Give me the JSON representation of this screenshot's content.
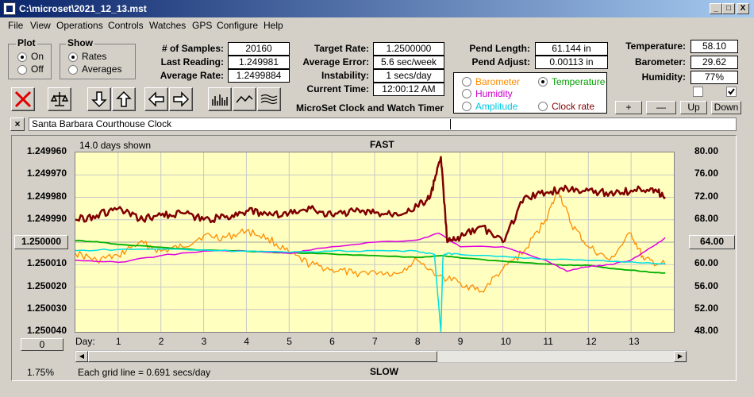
{
  "window": {
    "title": "C:\\microset\\2021_12_13.mst",
    "min": "_",
    "max": "□",
    "close": "X"
  },
  "menu": [
    "File",
    "View",
    "Operations",
    "Controls",
    "Watches",
    "GPS",
    "Configure",
    "Help"
  ],
  "plot_group": {
    "title": "Plot",
    "on": "On",
    "off": "Off",
    "selected": "On"
  },
  "show_group": {
    "title": "Show",
    "rates": "Rates",
    "averages": "Averages",
    "selected": "Rates"
  },
  "stats": {
    "samples_label": "# of Samples:",
    "samples": "20160",
    "last_reading_label": "Last Reading:",
    "last_reading": "1.249981",
    "average_rate_label": "Average Rate:",
    "average_rate": "1.2499884",
    "target_rate_label": "Target Rate:",
    "target_rate": "1.2500000",
    "average_error_label": "Average Error:",
    "average_error": "5.6 sec/week",
    "instability_label": "Instability:",
    "instability": "1 secs/day",
    "current_time_label": "Current Time:",
    "current_time": "12:00:12 AM",
    "pend_length_label": "Pend Length:",
    "pend_length": "61.144 in",
    "pend_adjust_label": "Pend Adjust:",
    "pend_adjust": "0.00113 in",
    "temperature_label": "Temperature:",
    "temperature": "58.10",
    "barometer_label": "Barometer:",
    "barometer": "29.62",
    "humidity_label": "Humidity:",
    "humidity": "77%"
  },
  "app_name": "MicroSet Clock and Watch Timer",
  "legend": {
    "barometer": "Barometer",
    "temperature": "Temperature",
    "humidity": "Humidity",
    "amplitude": "Amplitude",
    "clock_rate": "Clock rate",
    "selected": "Temperature"
  },
  "colors": {
    "clock_rate": "#800000",
    "barometer": "#ff8c00",
    "temperature": "#00b000",
    "humidity": "#e000e0",
    "amplitude": "#00e0e0",
    "plot_bg": "#ffffc0"
  },
  "adjust_buttons": {
    "plus": "+",
    "minus": "—",
    "up": "Up",
    "down": "Down"
  },
  "checkboxes": {
    "left": false,
    "right": true
  },
  "clock_name": "Santa Barbara Courthouse Clock",
  "chart": {
    "days_shown": "14.0 days shown",
    "top_label": "FAST",
    "bottom_label": "SLOW",
    "center_button": "1.250000",
    "right_button": "64.00",
    "zero_button": "0",
    "percent": "1.75%",
    "grid_note": "Each grid line = 0.691 secs/day",
    "day_label": "Day:"
  },
  "chart_data": {
    "type": "line",
    "x_label": "Day:",
    "x_ticks": [
      1,
      2,
      3,
      4,
      5,
      6,
      7,
      8,
      9,
      10,
      11,
      12,
      13
    ],
    "xlim": [
      0,
      14
    ],
    "y_left_ticks": [
      "1.249960",
      "1.249970",
      "1.249980",
      "1.249990",
      "1.250000",
      "1.250010",
      "1.250020",
      "1.250030",
      "1.250040"
    ],
    "y_left_range": [
      1.24996,
      1.25004
    ],
    "y_left_inverted": true,
    "y_right_ticks": [
      "80.00",
      "76.00",
      "72.00",
      "68.00",
      "64.00",
      "60.00",
      "56.00",
      "52.00",
      "48.00"
    ],
    "y_right_range": [
      48,
      80
    ],
    "grid": true,
    "series": [
      {
        "name": "Clock rate",
        "axis": "left",
        "x": [
          0,
          0.5,
          1,
          1.5,
          2,
          2.5,
          3,
          3.5,
          4,
          4.5,
          5,
          5.5,
          6,
          6.5,
          7,
          7.5,
          8,
          8.3,
          8.55,
          8.7,
          9,
          9.5,
          10,
          10.5,
          11,
          11.5,
          12,
          12.5,
          13,
          13.5,
          13.8
        ],
        "y": [
          1.24999,
          1.249988,
          1.249985,
          1.24999,
          1.249988,
          1.249987,
          1.24999,
          1.249989,
          1.249986,
          1.249988,
          1.249987,
          1.249985,
          1.249988,
          1.249986,
          1.249987,
          1.249987,
          1.249984,
          1.24998,
          1.249962,
          1.25,
          1.249998,
          1.249993,
          1.25,
          1.24998,
          1.249978,
          1.249976,
          1.249977,
          1.249978,
          1.249977,
          1.249976,
          1.24998
        ]
      },
      {
        "name": "Barometer",
        "axis": "left",
        "x": [
          0,
          0.5,
          1,
          1.5,
          2,
          2.5,
          3,
          3.5,
          4,
          4.5,
          5,
          5.5,
          6,
          6.5,
          7,
          7.5,
          8,
          8.5,
          9,
          9.5,
          10,
          10.5,
          11,
          11.3,
          11.6,
          12,
          12.5,
          13,
          13.3,
          13.8
        ],
        "y": [
          1.250005,
          1.250008,
          1.250006,
          1.25,
          1.250004,
          1.250002,
          1.249997,
          1.249998,
          1.249995,
          1.249998,
          1.250005,
          1.25001,
          1.250012,
          1.250014,
          1.250013,
          1.250014,
          1.250008,
          1.250015,
          1.250018,
          1.250022,
          1.250012,
          1.250004,
          1.24999,
          1.249977,
          1.249992,
          1.250002,
          1.250008,
          1.249996,
          1.250008,
          1.25001
        ]
      },
      {
        "name": "Humidity",
        "axis": "left",
        "x": [
          0,
          1,
          2,
          3,
          4,
          5,
          6,
          7,
          8,
          8.5,
          9,
          10,
          11,
          11.5,
          12,
          12.5,
          13,
          13.5,
          13.8
        ],
        "y": [
          1.250008,
          1.250009,
          1.250006,
          1.250004,
          1.250004,
          1.250005,
          1.250002,
          1.25,
          1.249999,
          1.249996,
          1.250002,
          1.250002,
          1.250008,
          1.250013,
          1.250011,
          1.25001,
          1.250008,
          1.250002,
          1.249998
        ]
      },
      {
        "name": "Temperature",
        "axis": "right",
        "x": [
          0,
          0.5,
          1,
          2,
          3,
          4,
          5,
          6,
          7,
          8,
          8.6,
          9,
          10,
          11,
          11.5,
          12,
          12.5,
          13,
          13.5,
          13.8
        ],
        "y": [
          64.3,
          64.1,
          63.6,
          63.1,
          62.6,
          62.4,
          62.1,
          61.9,
          61.6,
          61.3,
          61.6,
          61.2,
          60.6,
          60.1,
          59.9,
          59.9,
          59.3,
          59.0,
          58.6,
          58.5
        ]
      },
      {
        "name": "Amplitude",
        "axis": "right",
        "x": [
          0,
          1,
          2,
          3,
          4,
          5,
          6,
          7,
          8,
          8.4,
          8.55,
          8.6,
          8.7,
          9,
          10,
          11,
          12,
          13,
          13.8
        ],
        "y": [
          62.5,
          62.7,
          62.8,
          62.6,
          62.4,
          62.2,
          62.4,
          62.5,
          62.4,
          61.8,
          48.0,
          61.7,
          62.0,
          61.8,
          61.5,
          61.0,
          60.7,
          60.5,
          60.2
        ]
      }
    ]
  }
}
